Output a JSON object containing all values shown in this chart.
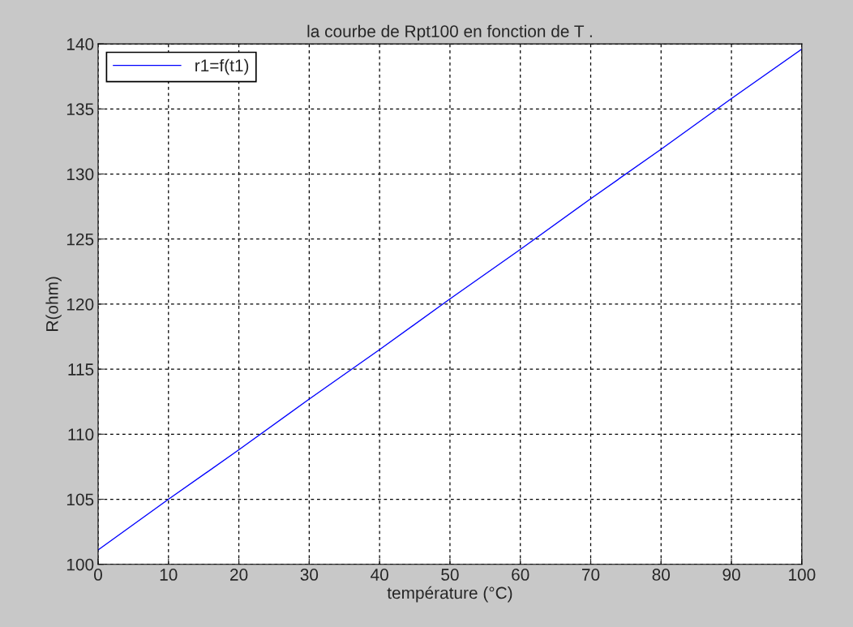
{
  "chart_data": {
    "type": "line",
    "title": "la courbe de Rpt100 en fonction de T .",
    "xlabel": "température (°C)",
    "ylabel": "R(ohm)",
    "x": [
      0,
      10,
      20,
      30,
      40,
      50,
      60,
      70,
      80,
      90,
      100
    ],
    "series": [
      {
        "name": "r1=f(t1)",
        "color": "#0000ff",
        "values": [
          101.1,
          105.0,
          108.8,
          112.7,
          116.5,
          120.4,
          124.2,
          128.1,
          131.9,
          135.8,
          139.6
        ]
      }
    ],
    "xlim": [
      0,
      100
    ],
    "xticks": [
      0,
      10,
      20,
      30,
      40,
      50,
      60,
      70,
      80,
      90,
      100
    ],
    "ylim": [
      100,
      140
    ],
    "yticks": [
      100,
      105,
      110,
      115,
      120,
      125,
      130,
      135,
      140
    ],
    "grid": true,
    "legend": "top left",
    "marker": "none",
    "line_style": "solid"
  }
}
